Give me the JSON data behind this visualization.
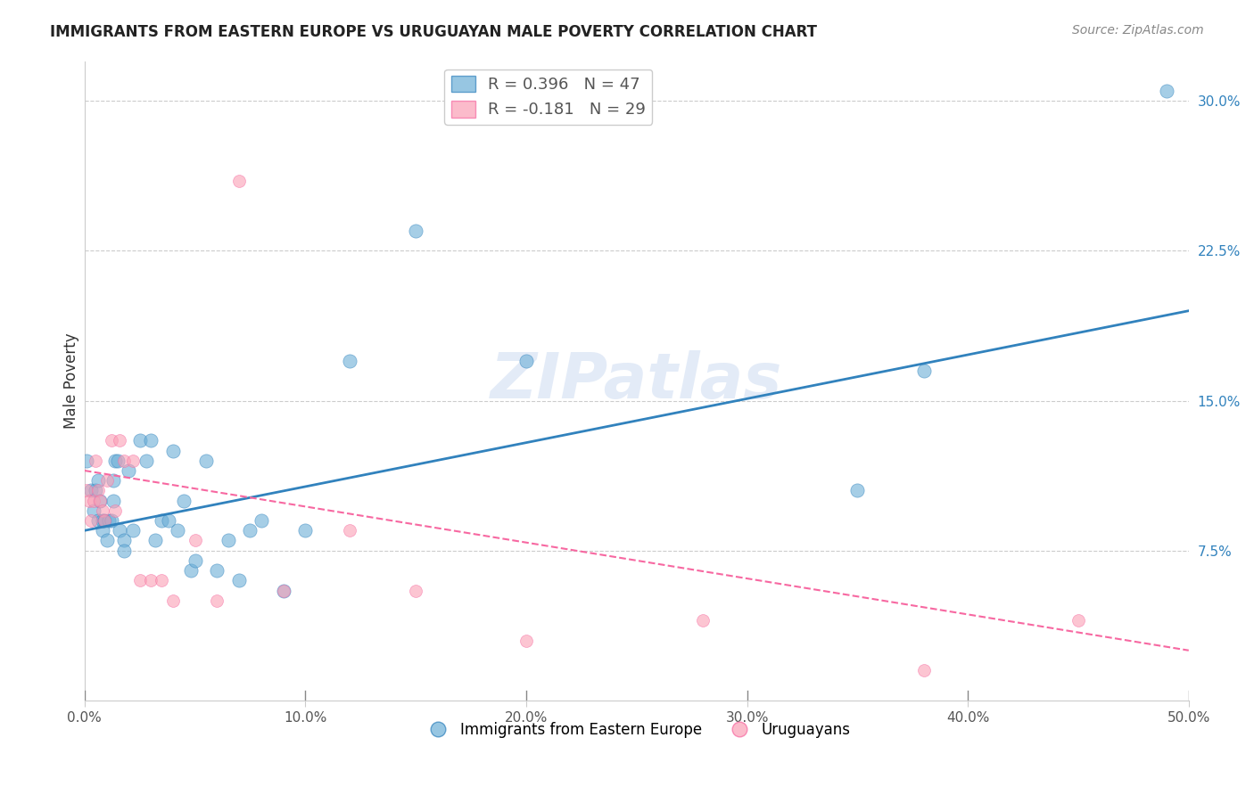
{
  "title": "IMMIGRANTS FROM EASTERN EUROPE VS URUGUAYAN MALE POVERTY CORRELATION CHART",
  "source": "Source: ZipAtlas.com",
  "xlabel": "",
  "ylabel": "Male Poverty",
  "xlim": [
    0,
    0.5
  ],
  "ylim": [
    0,
    0.32
  ],
  "xticks": [
    0.0,
    0.1,
    0.2,
    0.3,
    0.4,
    0.5
  ],
  "xtick_labels": [
    "0.0%",
    "10.0%",
    "20.0%",
    "30.0%",
    "40.0%",
    "50.0%"
  ],
  "yticks": [
    0.075,
    0.15,
    0.225,
    0.3
  ],
  "ytick_labels": [
    "7.5%",
    "15.0%",
    "22.5%",
    "30.0%"
  ],
  "legend1_label": "R = 0.396   N = 47",
  "legend2_label": "R = -0.181   N = 29",
  "legend_series1": "Immigrants from Eastern Europe",
  "legend_series2": "Uruguayans",
  "blue_color": "#6baed6",
  "pink_color": "#fa9fb5",
  "blue_line_color": "#3182bd",
  "pink_line_color": "#f768a1",
  "watermark": "ZIPatlas",
  "blue_R": 0.396,
  "blue_N": 47,
  "pink_R": -0.181,
  "pink_N": 29,
  "blue_dots_x": [
    0.001,
    0.003,
    0.004,
    0.005,
    0.006,
    0.006,
    0.007,
    0.008,
    0.008,
    0.009,
    0.01,
    0.011,
    0.012,
    0.013,
    0.013,
    0.014,
    0.015,
    0.016,
    0.018,
    0.018,
    0.02,
    0.022,
    0.025,
    0.028,
    0.03,
    0.032,
    0.035,
    0.038,
    0.04,
    0.042,
    0.045,
    0.048,
    0.05,
    0.055,
    0.06,
    0.065,
    0.07,
    0.075,
    0.08,
    0.09,
    0.1,
    0.12,
    0.15,
    0.2,
    0.35,
    0.38,
    0.49
  ],
  "blue_dots_y": [
    0.12,
    0.105,
    0.095,
    0.105,
    0.09,
    0.11,
    0.1,
    0.085,
    0.09,
    0.09,
    0.08,
    0.09,
    0.09,
    0.1,
    0.11,
    0.12,
    0.12,
    0.085,
    0.08,
    0.075,
    0.115,
    0.085,
    0.13,
    0.12,
    0.13,
    0.08,
    0.09,
    0.09,
    0.125,
    0.085,
    0.1,
    0.065,
    0.07,
    0.12,
    0.065,
    0.08,
    0.06,
    0.085,
    0.09,
    0.055,
    0.085,
    0.17,
    0.235,
    0.17,
    0.105,
    0.165,
    0.305
  ],
  "pink_dots_x": [
    0.001,
    0.002,
    0.003,
    0.004,
    0.005,
    0.006,
    0.007,
    0.008,
    0.009,
    0.01,
    0.012,
    0.014,
    0.016,
    0.018,
    0.022,
    0.025,
    0.03,
    0.035,
    0.04,
    0.05,
    0.06,
    0.07,
    0.09,
    0.12,
    0.15,
    0.2,
    0.28,
    0.38,
    0.45
  ],
  "pink_dots_y": [
    0.105,
    0.1,
    0.09,
    0.1,
    0.12,
    0.105,
    0.1,
    0.095,
    0.09,
    0.11,
    0.13,
    0.095,
    0.13,
    0.12,
    0.12,
    0.06,
    0.06,
    0.06,
    0.05,
    0.08,
    0.05,
    0.26,
    0.055,
    0.085,
    0.055,
    0.03,
    0.04,
    0.015,
    0.04
  ],
  "blue_line_x": [
    0,
    0.5
  ],
  "blue_line_y": [
    0.085,
    0.195
  ],
  "pink_line_x": [
    0,
    0.5
  ],
  "pink_line_y": [
    0.115,
    0.025
  ],
  "dot_size_blue": 120,
  "dot_size_pink": 100,
  "background_color": "#ffffff",
  "grid_color": "#cccccc"
}
